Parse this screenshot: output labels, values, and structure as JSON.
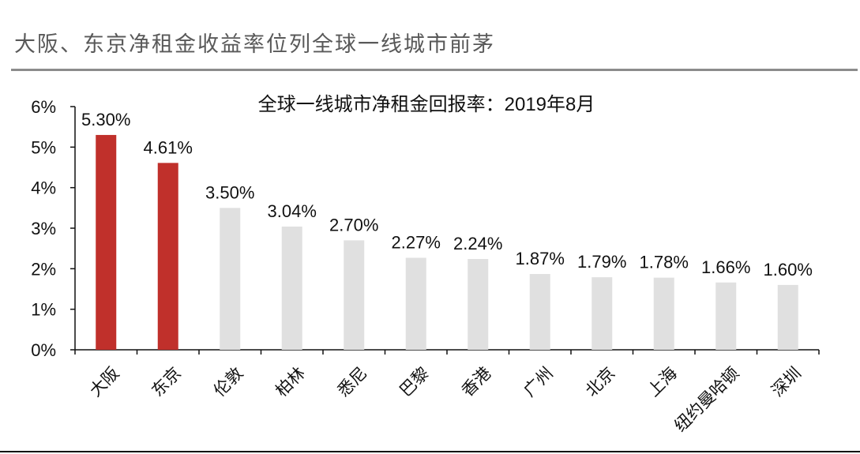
{
  "header": {
    "title": "大阪、东京净租金收益率位列全球一线城市前茅"
  },
  "colors": {
    "highlight": "#c0302b",
    "other": "#e0e0e0",
    "axis": "#111111",
    "header_text": "#595959",
    "header_rule": "#8c8c8c"
  },
  "chart_data": {
    "type": "bar",
    "title": "全球一线城市净租金回报率：2019年8月",
    "xlabel": "",
    "ylabel": "",
    "categories": [
      "大阪",
      "东京",
      "伦敦",
      "柏林",
      "悉尼",
      "巴黎",
      "香港",
      "广州",
      "北京",
      "上海",
      "纽约曼哈顿",
      "深圳"
    ],
    "values": [
      5.3,
      4.61,
      3.5,
      3.04,
      2.7,
      2.27,
      2.24,
      1.87,
      1.79,
      1.78,
      1.66,
      1.6
    ],
    "data_labels": [
      "5.30%",
      "4.61%",
      "3.50%",
      "3.04%",
      "2.70%",
      "2.27%",
      "2.24%",
      "1.87%",
      "1.79%",
      "1.78%",
      "1.66%",
      "1.60%"
    ],
    "highlighted_categories": [
      "大阪",
      "东京"
    ],
    "ylim": [
      0,
      6
    ],
    "yticks": [
      0,
      1,
      2,
      3,
      4,
      5,
      6
    ],
    "ytick_labels": [
      "0%",
      "1%",
      "2%",
      "3%",
      "4%",
      "5%",
      "6%"
    ],
    "grid": false,
    "legend": "none"
  }
}
